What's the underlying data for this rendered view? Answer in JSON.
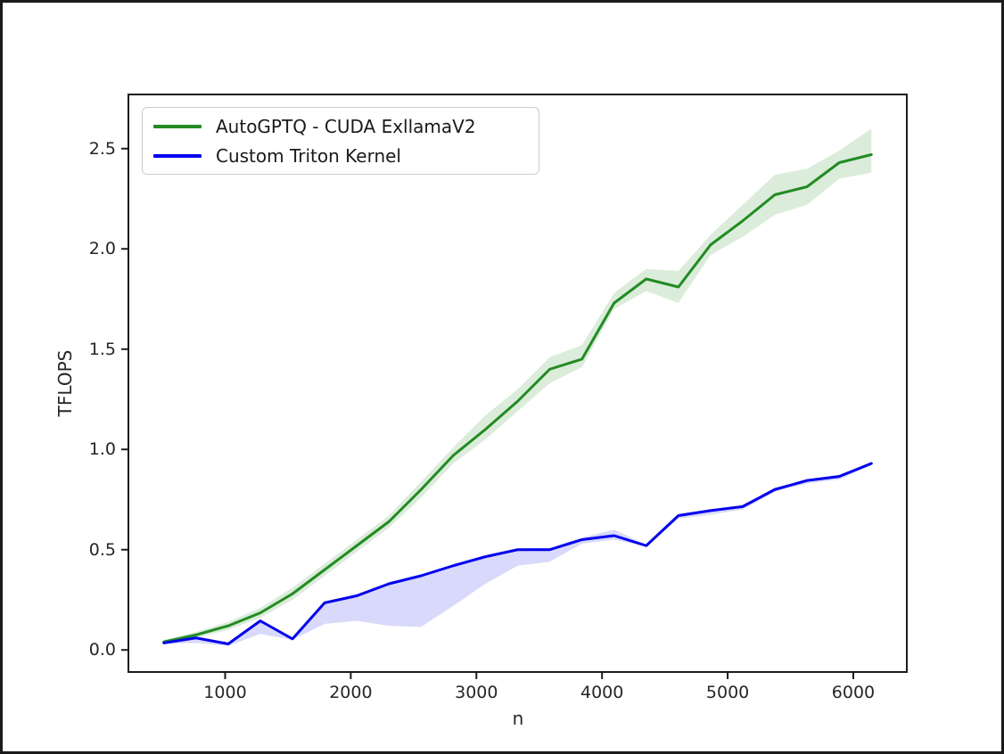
{
  "chart_data": {
    "type": "line",
    "title": "",
    "xlabel": "n",
    "ylabel": "TFLOPS",
    "grid": false,
    "legend_position": "upper left",
    "xlim": [
      230,
      6426
    ],
    "ylim": [
      -0.11,
      2.77
    ],
    "xticks": [
      {
        "v": 1000,
        "label": "1000"
      },
      {
        "v": 2000,
        "label": "2000"
      },
      {
        "v": 3000,
        "label": "3000"
      },
      {
        "v": 4000,
        "label": "4000"
      },
      {
        "v": 5000,
        "label": "5000"
      },
      {
        "v": 6000,
        "label": "6000"
      }
    ],
    "yticks": [
      {
        "v": 0.0,
        "label": "0.0"
      },
      {
        "v": 0.5,
        "label": "0.5"
      },
      {
        "v": 1.0,
        "label": "1.0"
      },
      {
        "v": 1.5,
        "label": "1.5"
      },
      {
        "v": 2.0,
        "label": "2.0"
      },
      {
        "v": 2.5,
        "label": "2.5"
      }
    ],
    "x": [
      512,
      768,
      1024,
      1280,
      1536,
      1792,
      2048,
      2304,
      2560,
      2816,
      3072,
      3328,
      3584,
      3840,
      4096,
      4352,
      4608,
      4864,
      5120,
      5376,
      5632,
      5888,
      6144
    ],
    "series": [
      {
        "name": "AutoGPTQ - CUDA ExllamaV2",
        "color": "#228B22",
        "band_opacity": 0.16,
        "values": [
          0.04,
          0.075,
          0.12,
          0.185,
          0.28,
          0.4,
          0.52,
          0.64,
          0.8,
          0.97,
          1.1,
          1.24,
          1.4,
          1.45,
          1.73,
          1.85,
          1.81,
          2.02,
          2.14,
          2.27,
          2.31,
          2.43,
          2.47
        ],
        "band_lower": [
          0.03,
          0.06,
          0.1,
          0.16,
          0.25,
          0.37,
          0.49,
          0.61,
          0.76,
          0.93,
          1.05,
          1.19,
          1.33,
          1.41,
          1.7,
          1.79,
          1.73,
          1.97,
          2.06,
          2.17,
          2.22,
          2.35,
          2.38
        ],
        "band_upper": [
          0.05,
          0.09,
          0.14,
          0.21,
          0.31,
          0.43,
          0.55,
          0.67,
          0.84,
          1.01,
          1.17,
          1.3,
          1.46,
          1.52,
          1.78,
          1.9,
          1.89,
          2.07,
          2.22,
          2.37,
          2.4,
          2.49,
          2.6
        ]
      },
      {
        "name": "Custom Triton Kernel",
        "color": "#0000EE",
        "band_opacity": 0.15,
        "values": [
          0.035,
          0.06,
          0.03,
          0.145,
          0.055,
          0.235,
          0.27,
          0.33,
          0.37,
          0.42,
          0.465,
          0.5,
          0.5,
          0.55,
          0.57,
          0.52,
          0.67,
          0.695,
          0.715,
          0.8,
          0.845,
          0.865,
          0.93
        ],
        "band_lower": [
          0.03,
          0.035,
          0.02,
          0.08,
          0.05,
          0.13,
          0.145,
          0.12,
          0.115,
          0.22,
          0.33,
          0.42,
          0.44,
          0.53,
          0.55,
          0.515,
          0.655,
          0.675,
          0.7,
          0.79,
          0.83,
          0.85,
          0.92
        ],
        "band_upper": [
          0.04,
          0.065,
          0.035,
          0.15,
          0.06,
          0.24,
          0.28,
          0.335,
          0.375,
          0.425,
          0.47,
          0.505,
          0.51,
          0.56,
          0.6,
          0.525,
          0.675,
          0.7,
          0.72,
          0.81,
          0.85,
          0.875,
          0.935
        ]
      }
    ]
  }
}
